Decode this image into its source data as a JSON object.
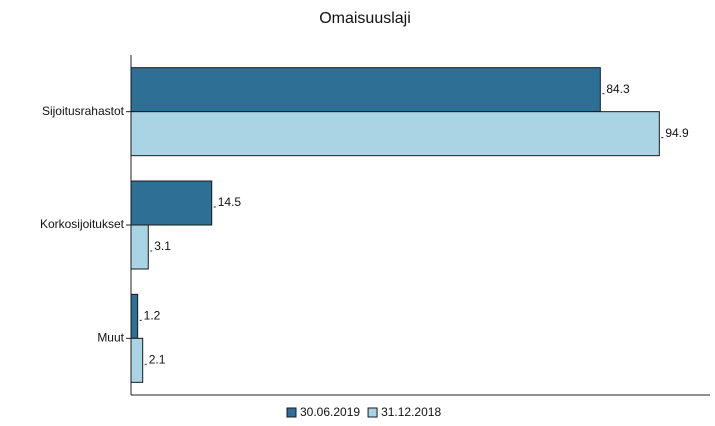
{
  "chart_data": {
    "type": "barh",
    "title": "Omaisuuslaji",
    "categories": [
      "Sijoitusrahastot",
      "Korkosijoitukset",
      "Muut"
    ],
    "series": [
      {
        "name": "30.06.2019",
        "color": "#2e6f96",
        "values": [
          84.3,
          14.5,
          1.2
        ]
      },
      {
        "name": "31.12.2018",
        "color": "#a9d4e4",
        "values": [
          94.9,
          3.1,
          2.1
        ]
      }
    ],
    "xlim": [
      0,
      104
    ]
  }
}
